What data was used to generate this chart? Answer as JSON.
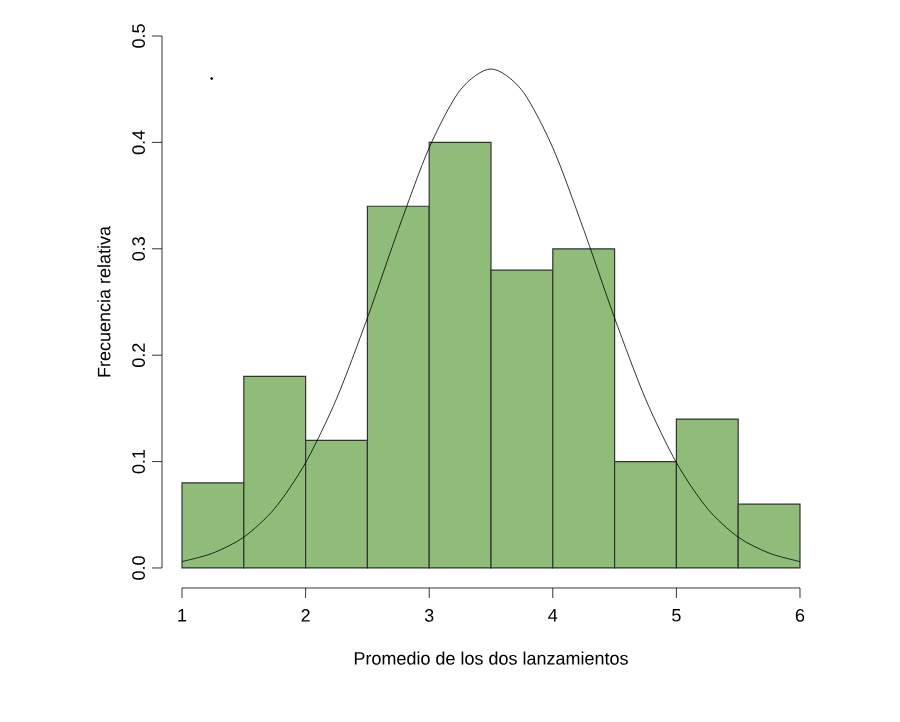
{
  "chart_data": {
    "type": "histogram",
    "xlabel": "Promedio de los dos lanzamientos",
    "ylabel": "Frecuencia relativa",
    "bins": [
      1,
      1.5,
      2,
      2.5,
      3,
      3.5,
      4,
      4.5,
      5,
      5.5,
      6
    ],
    "values": [
      0.08,
      0.18,
      0.12,
      0.34,
      0.4,
      0.28,
      0.3,
      0.1,
      0.14,
      0.06
    ],
    "color": "#8fbc78",
    "series": [
      {
        "type": "line",
        "color": "#000000",
        "x": [
          1,
          1.25,
          1.5,
          1.75,
          2,
          2.25,
          2.5,
          2.75,
          3,
          3.25,
          3.5,
          3.75,
          4,
          4.25,
          4.5,
          4.75,
          5,
          5.25,
          5.5,
          5.75,
          6
        ],
        "values": [
          0.006,
          0.014,
          0.029,
          0.056,
          0.099,
          0.159,
          0.235,
          0.318,
          0.395,
          0.449,
          0.469,
          0.449,
          0.395,
          0.318,
          0.235,
          0.159,
          0.099,
          0.056,
          0.029,
          0.014,
          0.006
        ]
      },
      {
        "type": "scatter",
        "color": "#000000",
        "x": [
          1.24
        ],
        "values": [
          0.46
        ]
      }
    ],
    "xlim": [
      1,
      6
    ],
    "ylim": [
      0,
      0.5
    ],
    "xticks": [
      1,
      2,
      3,
      4,
      5,
      6
    ],
    "yticks": [
      {
        "value": 0,
        "label": "0.0"
      },
      0.1,
      0.2,
      0.3,
      0.4,
      0.5
    ],
    "grid": false
  }
}
